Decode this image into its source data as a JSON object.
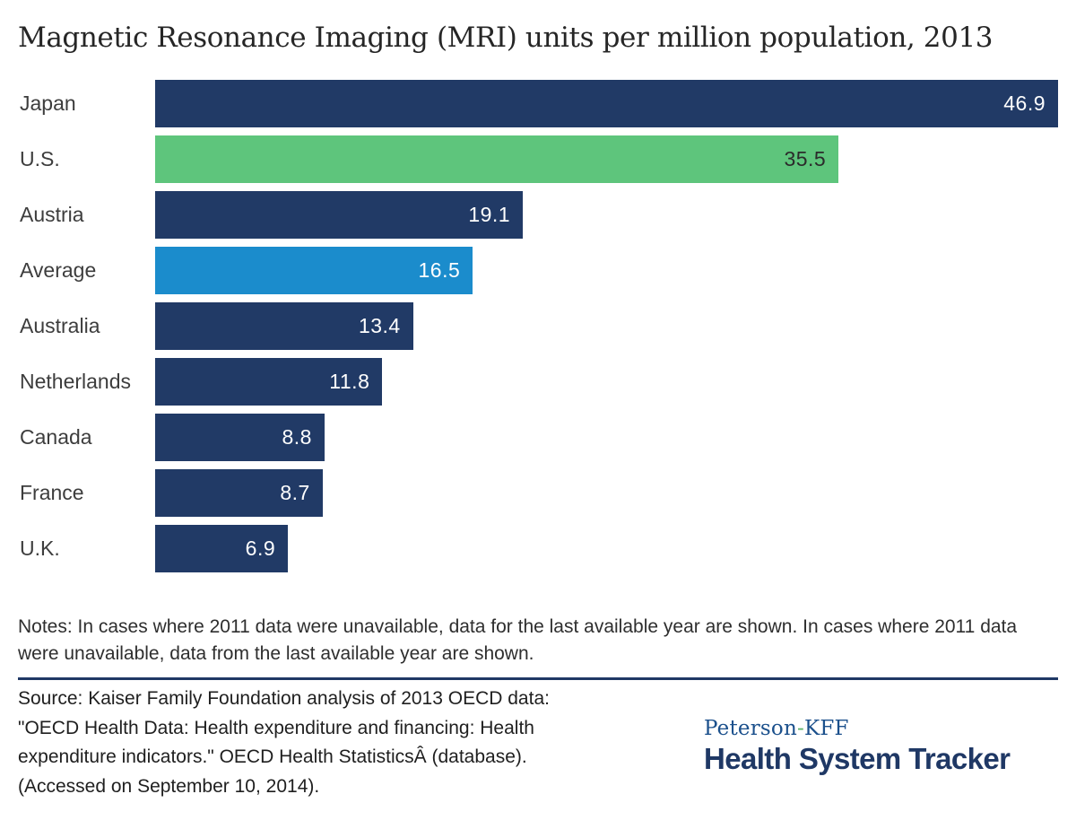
{
  "title": "Magnetic Resonance Imaging (MRI) units per million population, 2013",
  "chart_data": {
    "type": "bar",
    "orientation": "horizontal",
    "title": "Magnetic Resonance Imaging (MRI) units per million population, 2013",
    "categories": [
      "Japan",
      "U.S.",
      "Austria",
      "Average",
      "Australia",
      "Netherlands",
      "Canada",
      "France",
      "U.K."
    ],
    "values": [
      46.9,
      35.5,
      19.1,
      16.5,
      13.4,
      11.8,
      8.8,
      8.7,
      6.9
    ],
    "value_labels": [
      "46.9",
      "35.5",
      "19.1",
      "16.5",
      "13.4",
      "11.8",
      "8.8",
      "8.7",
      "6.9"
    ],
    "bar_colors": [
      "#213a66",
      "#5ec57c",
      "#213a66",
      "#1b8ccc",
      "#213a66",
      "#213a66",
      "#213a66",
      "#213a66",
      "#213a66"
    ],
    "value_label_colors": [
      "#ffffff",
      "#2b2b2b",
      "#ffffff",
      "#ffffff",
      "#ffffff",
      "#ffffff",
      "#ffffff",
      "#ffffff",
      "#ffffff"
    ],
    "xlim": [
      0,
      46.9
    ],
    "grid": false,
    "axes_visible": false,
    "value_label_position": "inside-end",
    "xlabel": "",
    "ylabel": ""
  },
  "colors": {
    "navy": "#213a66",
    "green": "#5ec57c",
    "light_blue": "#1b8ccc",
    "divider": "#1f3865",
    "title_text": "#262626",
    "label_text": "#3d3d3d",
    "logo_blue": "#1b508c",
    "logo_green": "#5db46a"
  },
  "notes": "Notes: In cases where 2011 data were unavailable, data for the last available year are shown. In cases where 2011 data were unavailable, data from the last available year are shown.",
  "source": {
    "lines": [
      "Source: Kaiser Family Foundation analysis of 2013 OECD data:",
      "\"OECD Health Data: Health expenditure and financing: Health",
      "expenditure indicators.\" OECD Health StatisticsÂ (database).",
      "(Accessed on September 10, 2014)."
    ]
  },
  "logo": {
    "peterson": "Peterson",
    "hyphen": "-",
    "kff": "KFF",
    "tracker": "Health System Tracker"
  }
}
